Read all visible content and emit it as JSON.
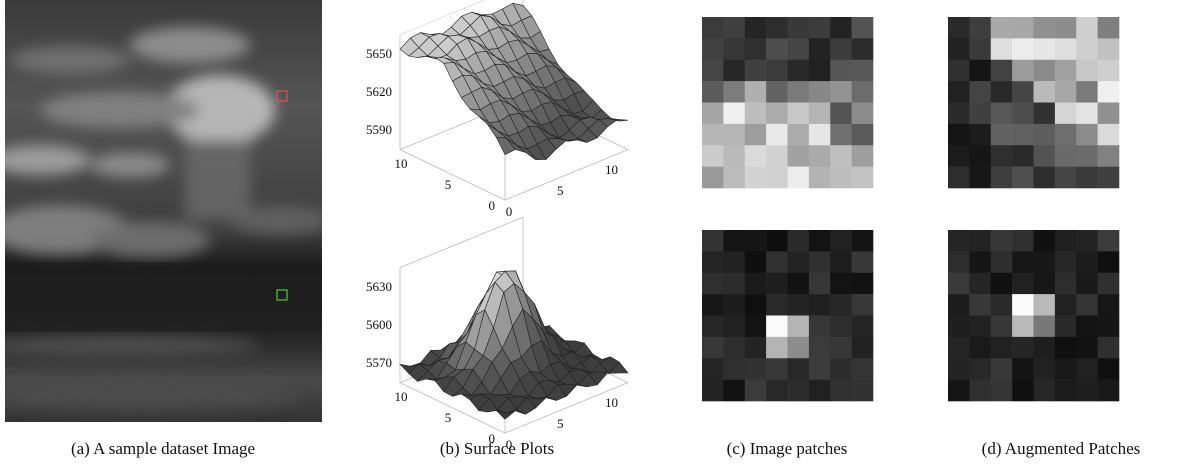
{
  "panels": [
    {
      "caption": "(a) A sample dataset Image"
    },
    {
      "caption": "(b) Surface Plots",
      "plots": [
        {
          "z_ticks": [
            "5650",
            "5620",
            "5590"
          ],
          "y_ticks": [
            "10",
            "5",
            "0"
          ],
          "x_ticks": [
            "0",
            "5",
            "10"
          ]
        },
        {
          "z_ticks": [
            "5630",
            "5600",
            "5570"
          ],
          "y_ticks": [
            "10",
            "5",
            "0"
          ],
          "x_ticks": [
            "0",
            "5",
            "10"
          ]
        }
      ]
    },
    {
      "caption": "(c) Image patches"
    },
    {
      "caption": "(d) Augmented Patches"
    }
  ]
}
